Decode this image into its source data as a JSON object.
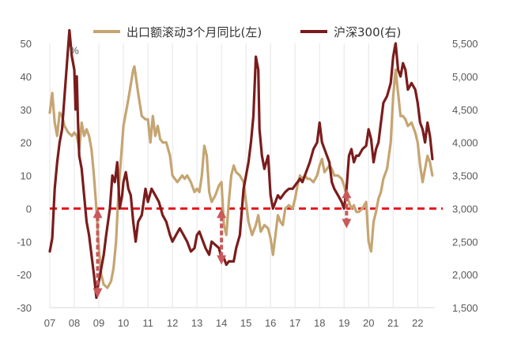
{
  "chart_data": {
    "type": "line",
    "title": "",
    "xlabel": "",
    "ylabel_left": "",
    "ylabel_right": "",
    "x_ticks": [
      "07",
      "08",
      "09",
      "10",
      "11",
      "12",
      "13",
      "14",
      "15",
      "16",
      "17",
      "18",
      "19",
      "20",
      "21",
      "22"
    ],
    "x_range": [
      2007.0,
      2022.7
    ],
    "ylim_left": [
      -30,
      50
    ],
    "y_ticks_left": [
      "-30",
      "-20",
      "-10",
      "0",
      "10",
      "20",
      "30",
      "40",
      "50"
    ],
    "ylim_right": [
      1500,
      5500
    ],
    "y_ticks_right": [
      "1,500",
      "2,000",
      "2,500",
      "3,000",
      "3,500",
      "4,000",
      "4,500",
      "5,000",
      "5,500"
    ],
    "grid": "vertical",
    "legend_position": "top",
    "colors": {
      "export": "#C5A572",
      "csi300": "#7B1C1C",
      "zero_line": "#E8161B",
      "arrow": "#C9595A"
    },
    "annotations": [
      {
        "text": "%",
        "x": 2008.0,
        "y_left": 48
      }
    ],
    "arrows": [
      {
        "x": 2008.95,
        "y_left_from": 0,
        "y_left_to": -27
      },
      {
        "x": 2014.0,
        "y_left_from": 0,
        "y_left_to": -17
      },
      {
        "x": 2019.1,
        "y_left_from": 6,
        "y_left_to": -6
      }
    ],
    "series": [
      {
        "name": "出口额滚动3个月同比(左)",
        "axis": "left",
        "points": [
          [
            2007.0,
            29
          ],
          [
            2007.1,
            35
          ],
          [
            2007.2,
            26
          ],
          [
            2007.3,
            22
          ],
          [
            2007.4,
            29
          ],
          [
            2007.5,
            28
          ],
          [
            2007.6,
            25
          ],
          [
            2007.75,
            23
          ],
          [
            2007.9,
            22
          ],
          [
            2008.0,
            23
          ],
          [
            2008.1,
            22
          ],
          [
            2008.2,
            18
          ],
          [
            2008.3,
            26
          ],
          [
            2008.4,
            22
          ],
          [
            2008.5,
            24
          ],
          [
            2008.6,
            22
          ],
          [
            2008.7,
            18
          ],
          [
            2008.8,
            10
          ],
          [
            2008.9,
            0
          ],
          [
            2009.0,
            -12
          ],
          [
            2009.1,
            -20
          ],
          [
            2009.2,
            -23
          ],
          [
            2009.35,
            -24
          ],
          [
            2009.5,
            -22
          ],
          [
            2009.6,
            -18
          ],
          [
            2009.7,
            -10
          ],
          [
            2009.8,
            5
          ],
          [
            2010.0,
            25
          ],
          [
            2010.2,
            33
          ],
          [
            2010.4,
            42
          ],
          [
            2010.45,
            43
          ],
          [
            2010.6,
            35
          ],
          [
            2010.75,
            28
          ],
          [
            2010.9,
            27
          ],
          [
            2011.0,
            27
          ],
          [
            2011.1,
            20
          ],
          [
            2011.2,
            28
          ],
          [
            2011.3,
            22
          ],
          [
            2011.4,
            25
          ],
          [
            2011.5,
            21
          ],
          [
            2011.6,
            20
          ],
          [
            2011.75,
            20
          ],
          [
            2011.9,
            16
          ],
          [
            2012.0,
            10
          ],
          [
            2012.2,
            8
          ],
          [
            2012.4,
            10
          ],
          [
            2012.5,
            9
          ],
          [
            2012.6,
            10
          ],
          [
            2012.75,
            8
          ],
          [
            2012.9,
            5
          ],
          [
            2013.0,
            6
          ],
          [
            2013.1,
            5
          ],
          [
            2013.2,
            10
          ],
          [
            2013.3,
            19
          ],
          [
            2013.4,
            16
          ],
          [
            2013.5,
            5
          ],
          [
            2013.6,
            2
          ],
          [
            2013.75,
            4
          ],
          [
            2013.9,
            7
          ],
          [
            2014.0,
            8
          ],
          [
            2014.1,
            -5
          ],
          [
            2014.2,
            -8
          ],
          [
            2014.3,
            2
          ],
          [
            2014.4,
            10
          ],
          [
            2014.5,
            13
          ],
          [
            2014.6,
            11
          ],
          [
            2014.75,
            10
          ],
          [
            2014.9,
            8
          ],
          [
            2015.0,
            2
          ],
          [
            2015.1,
            -4
          ],
          [
            2015.25,
            -8
          ],
          [
            2015.4,
            -5
          ],
          [
            2015.5,
            -2
          ],
          [
            2015.6,
            -7
          ],
          [
            2015.75,
            -5
          ],
          [
            2015.9,
            -6
          ],
          [
            2016.0,
            -9
          ],
          [
            2016.1,
            -14
          ],
          [
            2016.2,
            -8
          ],
          [
            2016.3,
            -2
          ],
          [
            2016.4,
            -4
          ],
          [
            2016.5,
            -5
          ],
          [
            2016.6,
            0
          ],
          [
            2016.75,
            1
          ],
          [
            2016.9,
            0
          ],
          [
            2017.0,
            3
          ],
          [
            2017.1,
            7
          ],
          [
            2017.2,
            10
          ],
          [
            2017.3,
            9
          ],
          [
            2017.4,
            10
          ],
          [
            2017.5,
            9
          ],
          [
            2017.6,
            9
          ],
          [
            2017.75,
            8
          ],
          [
            2017.9,
            10
          ],
          [
            2018.0,
            13
          ],
          [
            2018.1,
            15
          ],
          [
            2018.2,
            11
          ],
          [
            2018.3,
            12
          ],
          [
            2018.4,
            13
          ],
          [
            2018.5,
            12
          ],
          [
            2018.6,
            10
          ],
          [
            2018.75,
            10
          ],
          [
            2018.9,
            9
          ],
          [
            2019.0,
            7
          ],
          [
            2019.1,
            4
          ],
          [
            2019.2,
            2
          ],
          [
            2019.3,
            0
          ],
          [
            2019.4,
            1
          ],
          [
            2019.5,
            -1
          ],
          [
            2019.6,
            -1
          ],
          [
            2019.75,
            0
          ],
          [
            2019.9,
            2
          ],
          [
            2020.0,
            -10
          ],
          [
            2020.1,
            -13
          ],
          [
            2020.2,
            -4
          ],
          [
            2020.3,
            -1
          ],
          [
            2020.4,
            3
          ],
          [
            2020.5,
            5
          ],
          [
            2020.6,
            9
          ],
          [
            2020.75,
            12
          ],
          [
            2020.9,
            20
          ],
          [
            2021.0,
            34
          ],
          [
            2021.1,
            42
          ],
          [
            2021.2,
            35
          ],
          [
            2021.3,
            28
          ],
          [
            2021.4,
            28
          ],
          [
            2021.5,
            27
          ],
          [
            2021.6,
            25
          ],
          [
            2021.75,
            26
          ],
          [
            2021.9,
            23
          ],
          [
            2022.0,
            20
          ],
          [
            2022.1,
            13
          ],
          [
            2022.2,
            8
          ],
          [
            2022.3,
            12
          ],
          [
            2022.4,
            16
          ],
          [
            2022.5,
            14
          ],
          [
            2022.6,
            10
          ]
        ]
      },
      {
        "name": "沪深300(右)",
        "axis": "right",
        "points": [
          [
            2007.0,
            2350
          ],
          [
            2007.1,
            2550
          ],
          [
            2007.2,
            3300
          ],
          [
            2007.3,
            3700
          ],
          [
            2007.4,
            4000
          ],
          [
            2007.5,
            4200
          ],
          [
            2007.6,
            4700
          ],
          [
            2007.7,
            5200
          ],
          [
            2007.8,
            5700
          ],
          [
            2007.9,
            5300
          ],
          [
            2008.0,
            5100
          ],
          [
            2008.05,
            4500
          ],
          [
            2008.1,
            5000
          ],
          [
            2008.15,
            4300
          ],
          [
            2008.2,
            3800
          ],
          [
            2008.3,
            3600
          ],
          [
            2008.4,
            3200
          ],
          [
            2008.5,
            2800
          ],
          [
            2008.6,
            2600
          ],
          [
            2008.7,
            2300
          ],
          [
            2008.8,
            2000
          ],
          [
            2008.9,
            1650
          ],
          [
            2008.95,
            1800
          ],
          [
            2009.1,
            2100
          ],
          [
            2009.2,
            2300
          ],
          [
            2009.3,
            2600
          ],
          [
            2009.45,
            3000
          ],
          [
            2009.55,
            3500
          ],
          [
            2009.65,
            3400
          ],
          [
            2009.75,
            3700
          ],
          [
            2009.85,
            3000
          ],
          [
            2009.95,
            3200
          ],
          [
            2010.0,
            3400
          ],
          [
            2010.1,
            3550
          ],
          [
            2010.2,
            3300
          ],
          [
            2010.3,
            3200
          ],
          [
            2010.4,
            2800
          ],
          [
            2010.5,
            2500
          ],
          [
            2010.6,
            2800
          ],
          [
            2010.75,
            2900
          ],
          [
            2010.9,
            3300
          ],
          [
            2011.0,
            3100
          ],
          [
            2011.15,
            3300
          ],
          [
            2011.3,
            3200
          ],
          [
            2011.45,
            3100
          ],
          [
            2011.6,
            2900
          ],
          [
            2011.75,
            2800
          ],
          [
            2011.9,
            2600
          ],
          [
            2012.0,
            2500
          ],
          [
            2012.15,
            2600
          ],
          [
            2012.3,
            2700
          ],
          [
            2012.45,
            2600
          ],
          [
            2012.6,
            2500
          ],
          [
            2012.75,
            2350
          ],
          [
            2012.9,
            2400
          ],
          [
            2013.0,
            2600
          ],
          [
            2013.1,
            2650
          ],
          [
            2013.2,
            2550
          ],
          [
            2013.35,
            2400
          ],
          [
            2013.5,
            2300
          ],
          [
            2013.6,
            2500
          ],
          [
            2013.75,
            2450
          ],
          [
            2013.9,
            2400
          ],
          [
            2014.0,
            2250
          ],
          [
            2014.1,
            2250
          ],
          [
            2014.2,
            2150
          ],
          [
            2014.3,
            2200
          ],
          [
            2014.4,
            2200
          ],
          [
            2014.5,
            2200
          ],
          [
            2014.6,
            2400
          ],
          [
            2014.75,
            2600
          ],
          [
            2014.9,
            3300
          ],
          [
            2015.0,
            3500
          ],
          [
            2015.1,
            3700
          ],
          [
            2015.2,
            4000
          ],
          [
            2015.3,
            4400
          ],
          [
            2015.4,
            5300
          ],
          [
            2015.5,
            5100
          ],
          [
            2015.55,
            4200
          ],
          [
            2015.65,
            3800
          ],
          [
            2015.75,
            3600
          ],
          [
            2015.9,
            3800
          ],
          [
            2016.0,
            3200
          ],
          [
            2016.1,
            3000
          ],
          [
            2016.2,
            3100
          ],
          [
            2016.3,
            3200
          ],
          [
            2016.4,
            3150
          ],
          [
            2016.5,
            3200
          ],
          [
            2016.6,
            3250
          ],
          [
            2016.75,
            3300
          ],
          [
            2016.9,
            3300
          ],
          [
            2017.0,
            3350
          ],
          [
            2017.1,
            3400
          ],
          [
            2017.2,
            3450
          ],
          [
            2017.3,
            3400
          ],
          [
            2017.4,
            3500
          ],
          [
            2017.5,
            3600
          ],
          [
            2017.6,
            3700
          ],
          [
            2017.75,
            3900
          ],
          [
            2017.9,
            4000
          ],
          [
            2018.0,
            4300
          ],
          [
            2018.1,
            4000
          ],
          [
            2018.2,
            3900
          ],
          [
            2018.3,
            3800
          ],
          [
            2018.4,
            3700
          ],
          [
            2018.5,
            3400
          ],
          [
            2018.6,
            3300
          ],
          [
            2018.75,
            3200
          ],
          [
            2018.9,
            3100
          ],
          [
            2019.0,
            3000
          ],
          [
            2019.1,
            3300
          ],
          [
            2019.2,
            3800
          ],
          [
            2019.3,
            3900
          ],
          [
            2019.4,
            3700
          ],
          [
            2019.5,
            3800
          ],
          [
            2019.6,
            3800
          ],
          [
            2019.75,
            3900
          ],
          [
            2019.9,
            3950
          ],
          [
            2020.0,
            4200
          ],
          [
            2020.1,
            4050
          ],
          [
            2020.2,
            3700
          ],
          [
            2020.3,
            3900
          ],
          [
            2020.4,
            4000
          ],
          [
            2020.5,
            4300
          ],
          [
            2020.6,
            4600
          ],
          [
            2020.75,
            4700
          ],
          [
            2020.9,
            4900
          ],
          [
            2021.0,
            5300
          ],
          [
            2021.1,
            5500
          ],
          [
            2021.2,
            5100
          ],
          [
            2021.3,
            5000
          ],
          [
            2021.4,
            5200
          ],
          [
            2021.5,
            5100
          ],
          [
            2021.6,
            4800
          ],
          [
            2021.75,
            4900
          ],
          [
            2021.9,
            4800
          ],
          [
            2022.0,
            4600
          ],
          [
            2022.1,
            4300
          ],
          [
            2022.2,
            4200
          ],
          [
            2022.3,
            4000
          ],
          [
            2022.4,
            4300
          ],
          [
            2022.5,
            4100
          ],
          [
            2022.6,
            3750
          ]
        ]
      }
    ]
  }
}
